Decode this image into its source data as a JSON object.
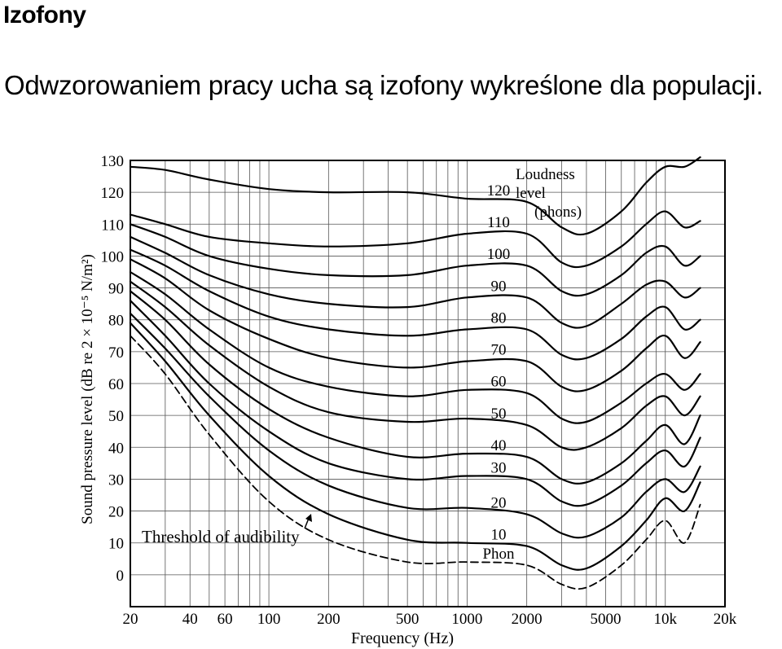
{
  "slide": {
    "title": "Izofony",
    "subtitle": "Odwzorowaniem pracy ucha są izofony wykreślone dla populacji."
  },
  "chart_data": {
    "type": "line",
    "xlabel": "Frequency (Hz)",
    "ylabel": "Sound pressure level (dB re 2 × 10⁻⁵ N/m²)",
    "xscale": "log",
    "xlim": [
      20,
      20000
    ],
    "ylim": [
      -10,
      130
    ],
    "xticks": [
      {
        "value": 20,
        "label": "20"
      },
      {
        "value": 40,
        "label": "40"
      },
      {
        "value": 60,
        "label": "60"
      },
      {
        "value": 100,
        "label": "100"
      },
      {
        "value": 200,
        "label": "200"
      },
      {
        "value": 500,
        "label": "500"
      },
      {
        "value": 1000,
        "label": "1000"
      },
      {
        "value": 2000,
        "label": "2000"
      },
      {
        "value": 5000,
        "label": "5000"
      },
      {
        "value": 10000,
        "label": "10k"
      },
      {
        "value": 20000,
        "label": "20k"
      }
    ],
    "yticks": [
      {
        "value": 130,
        "label": "130"
      },
      {
        "value": 120,
        "label": "120"
      },
      {
        "value": 110,
        "label": "110"
      },
      {
        "value": 100,
        "label": "100"
      },
      {
        "value": 90,
        "label": "90"
      },
      {
        "value": 80,
        "label": "80"
      },
      {
        "value": 70,
        "label": "70"
      },
      {
        "value": 60,
        "label": "60"
      },
      {
        "value": 50,
        "label": "50"
      },
      {
        "value": 40,
        "label": "40"
      },
      {
        "value": 30,
        "label": "30"
      },
      {
        "value": 20,
        "label": "20"
      },
      {
        "value": 10,
        "label": "10"
      },
      {
        "value": 0,
        "label": "0"
      }
    ],
    "grid": true,
    "legend_title": [
      "Loudness",
      "level",
      "(phons)"
    ],
    "annotations": [
      {
        "text": "Threshold of audibility"
      }
    ],
    "series": [
      {
        "name": "Phon",
        "style": "dashed",
        "x": [
          20,
          30,
          50,
          100,
          200,
          500,
          1000,
          2000,
          3000,
          4000,
          6000,
          8000,
          10000,
          12500,
          15000
        ],
        "y": [
          75,
          63,
          44,
          23,
          11,
          4,
          4,
          3,
          -3,
          -4,
          3,
          11,
          17,
          10,
          22
        ]
      },
      {
        "name": "10",
        "x": [
          20,
          30,
          50,
          100,
          200,
          500,
          1000,
          2000,
          3000,
          4000,
          6000,
          8000,
          10000,
          12500,
          15000
        ],
        "y": [
          79,
          67,
          50,
          31,
          19,
          11,
          10,
          9,
          3,
          2,
          9,
          17,
          24,
          20,
          29
        ]
      },
      {
        "name": "20",
        "x": [
          20,
          30,
          50,
          100,
          200,
          500,
          1000,
          2000,
          3000,
          4000,
          6000,
          8000,
          10000,
          12500,
          15000
        ],
        "y": [
          82,
          71,
          56,
          39,
          28,
          21,
          21,
          19,
          13,
          12,
          18,
          26,
          30,
          26,
          34
        ]
      },
      {
        "name": "30",
        "x": [
          20,
          30,
          50,
          100,
          200,
          500,
          1000,
          2000,
          3000,
          4000,
          6000,
          8000,
          10000,
          12500,
          15000
        ],
        "y": [
          86,
          75,
          60,
          45,
          35,
          30,
          31,
          30,
          23,
          22,
          28,
          35,
          39,
          34,
          43
        ]
      },
      {
        "name": "40",
        "x": [
          20,
          30,
          50,
          100,
          200,
          500,
          1000,
          2000,
          3000,
          4000,
          6000,
          8000,
          10000,
          12500,
          15000
        ],
        "y": [
          89,
          80,
          66,
          52,
          43,
          37,
          38,
          37,
          30,
          29,
          35,
          42,
          47,
          41,
          50
        ]
      },
      {
        "name": "50",
        "x": [
          20,
          30,
          50,
          100,
          200,
          500,
          1000,
          2000,
          3000,
          4000,
          6000,
          8000,
          10000,
          12500,
          15000
        ],
        "y": [
          92,
          84,
          72,
          59,
          51,
          48,
          49,
          47,
          40,
          40,
          46,
          53,
          56,
          50,
          56
        ]
      },
      {
        "name": "60",
        "x": [
          20,
          30,
          50,
          100,
          200,
          500,
          1000,
          2000,
          3000,
          4000,
          6000,
          8000,
          10000,
          12500,
          15000
        ],
        "y": [
          95,
          88,
          77,
          65,
          59,
          56,
          58,
          57,
          49,
          48,
          54,
          60,
          63,
          58,
          63
        ]
      },
      {
        "name": "70",
        "x": [
          20,
          30,
          50,
          100,
          200,
          500,
          1000,
          2000,
          3000,
          4000,
          6000,
          8000,
          10000,
          12500,
          15000
        ],
        "y": [
          99,
          93,
          83,
          74,
          68,
          65,
          67,
          67,
          59,
          58,
          64,
          71,
          75,
          68,
          73
        ]
      },
      {
        "name": "80",
        "x": [
          20,
          30,
          50,
          100,
          200,
          500,
          1000,
          2000,
          3000,
          4000,
          6000,
          8000,
          10000,
          12500,
          15000
        ],
        "y": [
          102,
          97,
          89,
          81,
          77,
          75,
          77,
          77,
          69,
          68,
          74,
          81,
          84,
          77,
          80
        ]
      },
      {
        "name": "90",
        "x": [
          20,
          30,
          50,
          100,
          200,
          500,
          1000,
          2000,
          3000,
          4000,
          6000,
          8000,
          10000,
          12500,
          15000
        ],
        "y": [
          106,
          101,
          94,
          88,
          85,
          84,
          87,
          87,
          79,
          78,
          85,
          91,
          92,
          87,
          90
        ]
      },
      {
        "name": "100",
        "x": [
          20,
          30,
          50,
          100,
          200,
          500,
          1000,
          2000,
          3000,
          4000,
          6000,
          8000,
          10000,
          12500,
          15000
        ],
        "y": [
          110,
          106,
          100,
          96,
          94,
          94,
          97,
          97,
          89,
          88,
          94,
          101,
          103,
          97,
          100
        ]
      },
      {
        "name": "110",
        "x": [
          20,
          30,
          50,
          100,
          200,
          500,
          1000,
          2000,
          3000,
          4000,
          6000,
          8000,
          10000,
          12500,
          15000
        ],
        "y": [
          113,
          110,
          106,
          104,
          103,
          104,
          107,
          107,
          98,
          97,
          103,
          110,
          114,
          109,
          111
        ]
      },
      {
        "name": "120",
        "x": [
          20,
          30,
          50,
          100,
          200,
          500,
          1000,
          2000,
          3000,
          4000,
          6000,
          8000,
          10000,
          12500,
          15000
        ],
        "y": [
          128,
          127,
          124,
          121,
          120,
          120,
          118,
          117,
          109,
          107,
          114,
          123,
          128,
          128,
          131
        ]
      }
    ]
  }
}
